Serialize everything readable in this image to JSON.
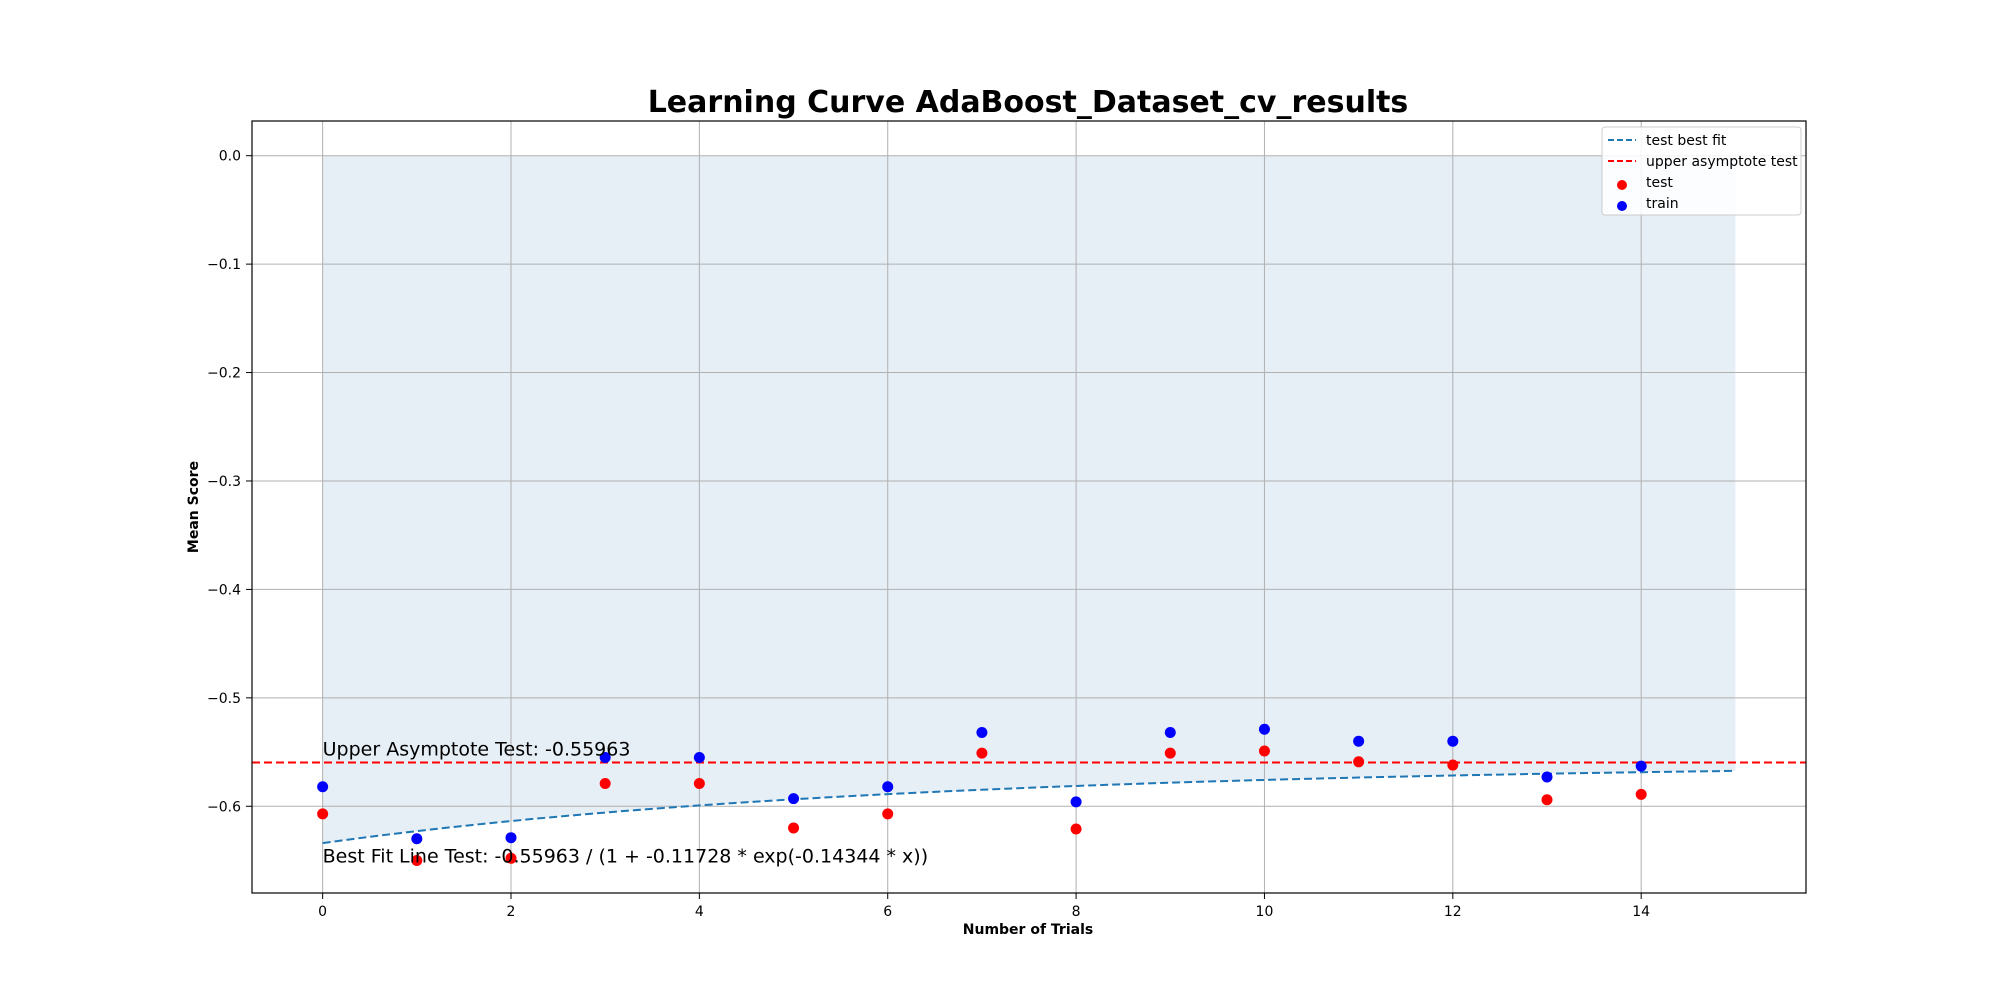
{
  "chart_data": {
    "type": "scatter",
    "title": "Learning Curve AdaBoost_Dataset_cv_results",
    "xlabel": "Number of Trials",
    "ylabel": "Mean Score",
    "xlim": [
      -0.75,
      15.75
    ],
    "ylim": [
      -0.68,
      0.032
    ],
    "xticks": [
      0,
      2,
      4,
      6,
      8,
      10,
      12,
      14
    ],
    "yticks": [
      0.0,
      -0.1,
      -0.2,
      -0.3,
      -0.4,
      -0.5,
      -0.6
    ],
    "ytick_labels": [
      "0.0",
      "−0.1",
      "−0.2",
      "−0.3",
      "−0.4",
      "−0.5",
      "−0.6"
    ],
    "grid": true,
    "legend_position": "top-right",
    "legend": [
      "test best fit",
      "upper asymptote test",
      "test",
      "train"
    ],
    "series": [
      {
        "name": "test",
        "kind": "scatter",
        "color": "#ff0000",
        "x": [
          0,
          1,
          2,
          3,
          4,
          5,
          6,
          7,
          8,
          9,
          10,
          11,
          12,
          13,
          14
        ],
        "values": [
          -0.607,
          -0.65,
          -0.648,
          -0.579,
          -0.579,
          -0.62,
          -0.607,
          -0.551,
          -0.621,
          -0.551,
          -0.549,
          -0.559,
          -0.562,
          -0.594,
          -0.589
        ]
      },
      {
        "name": "train",
        "kind": "scatter",
        "color": "#0000ff",
        "x": [
          0,
          1,
          2,
          3,
          4,
          5,
          6,
          7,
          8,
          9,
          10,
          11,
          12,
          13,
          14
        ],
        "values": [
          -0.582,
          -0.63,
          -0.629,
          -0.555,
          -0.555,
          -0.593,
          -0.582,
          -0.532,
          -0.596,
          -0.532,
          -0.529,
          -0.54,
          -0.54,
          -0.573,
          -0.563
        ]
      },
      {
        "name": "test best fit",
        "kind": "line",
        "dashed": true,
        "color": "#1f77b4",
        "formula": {
          "a": -0.55963,
          "b": -0.11728,
          "c": -0.14344
        },
        "x_range": [
          0,
          15
        ]
      },
      {
        "name": "upper asymptote test",
        "kind": "hline",
        "dashed": true,
        "color": "#ff0000",
        "value": -0.55963
      }
    ],
    "fill": {
      "color": "#e6eef6",
      "x_range": [
        0,
        15
      ],
      "upper": 0.0,
      "lower": "test best fit"
    },
    "annotations": [
      {
        "text": "Upper Asymptote Test: -0.55963",
        "x": 0,
        "y": -0.553
      },
      {
        "text": "Best Fit Line Test: -0.55963 / (1 + -0.11728 * exp(-0.14344 * x))",
        "x": 0,
        "y": -0.652
      }
    ]
  }
}
